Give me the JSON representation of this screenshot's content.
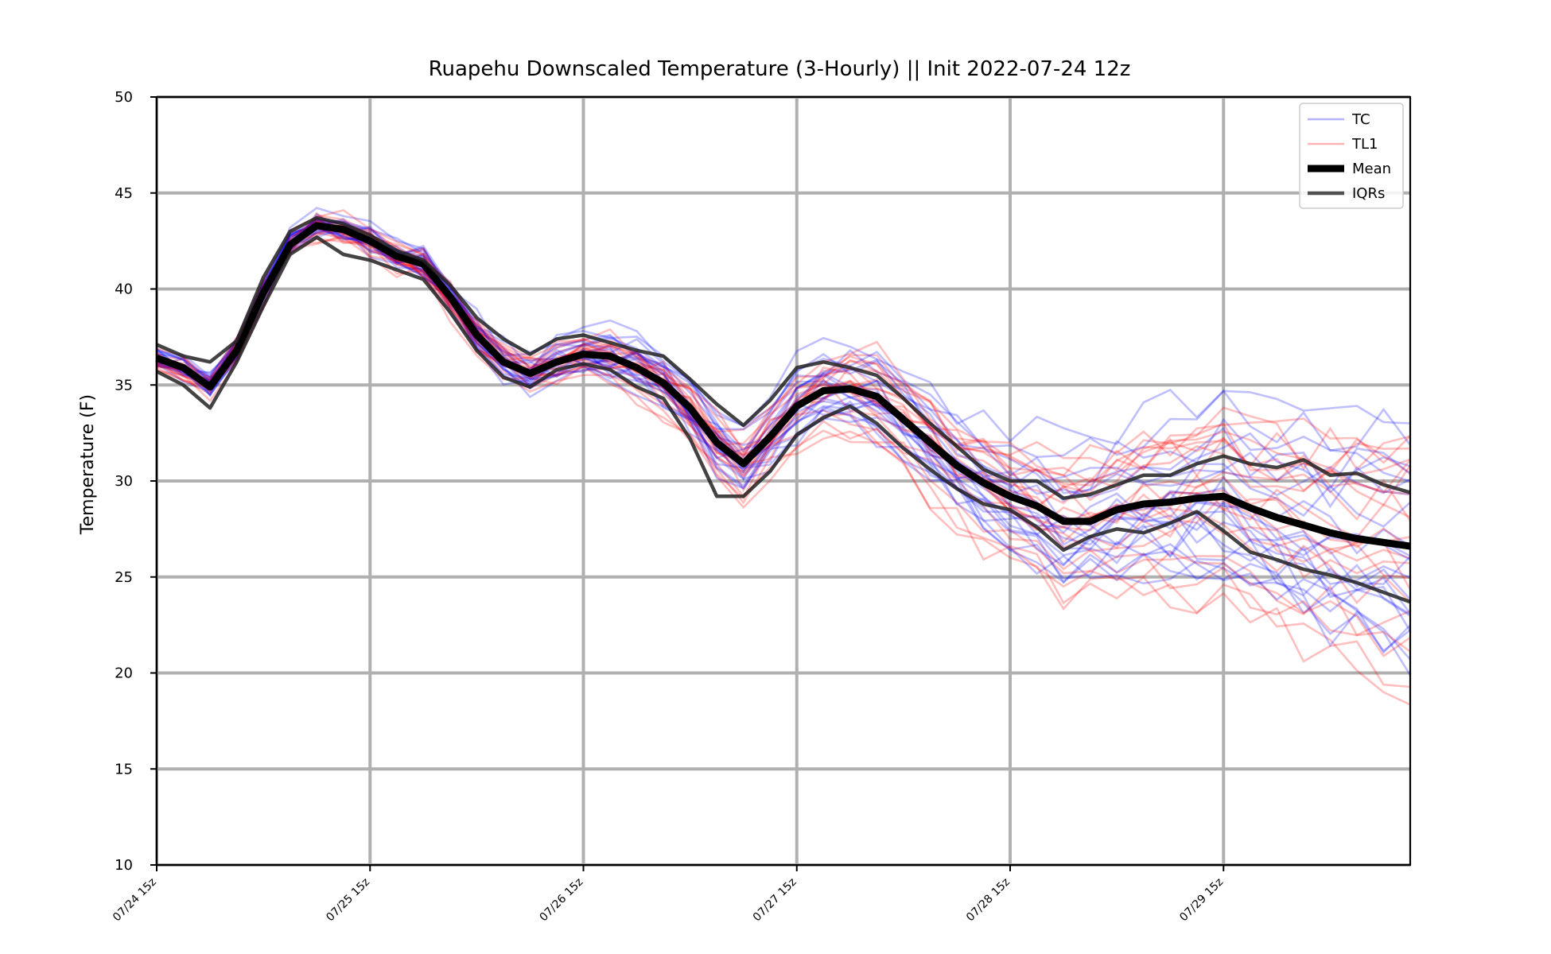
{
  "chart_data": {
    "type": "line",
    "title": "Ruapehu Downscaled Temperature (3-Hourly) || Init 2022-07-24 12z",
    "xlabel": "",
    "ylabel": "Temperature (F)",
    "ylim": [
      10,
      50
    ],
    "yticks": [
      10,
      15,
      20,
      25,
      30,
      35,
      40,
      45,
      50
    ],
    "x_tick_labels": [
      "07/24 15z",
      "07/25 15z",
      "07/26 15z",
      "07/27 15z",
      "07/28 15z",
      "07/29 15z"
    ],
    "x_hours": [
      0,
      3,
      6,
      9,
      12,
      15,
      18,
      21,
      24,
      27,
      30,
      33,
      36,
      39,
      42,
      45,
      48,
      51,
      54,
      57,
      60,
      63,
      66,
      69,
      72,
      75,
      78,
      81,
      84,
      87,
      90,
      93,
      96,
      99,
      102,
      105,
      108,
      111,
      114,
      117,
      120,
      123,
      126,
      129,
      132,
      135,
      138,
      141
    ],
    "grid": true,
    "legend": {
      "placement": "top-right",
      "entries": [
        {
          "label": "TC",
          "color": "#0000ff"
        },
        {
          "label": "TL1",
          "color": "#ff0000"
        },
        {
          "label": "Mean",
          "color": "#000000"
        },
        {
          "label": "IQRs",
          "color": "#333333"
        }
      ]
    },
    "series": [
      {
        "name": "Mean",
        "values": [
          36.4,
          35.9,
          34.9,
          36.8,
          39.8,
          42.3,
          43.3,
          43.1,
          42.5,
          41.7,
          41.3,
          39.6,
          37.6,
          36.2,
          35.6,
          36.2,
          36.6,
          36.5,
          35.9,
          35.1,
          33.8,
          32.0,
          30.9,
          32.3,
          33.9,
          34.7,
          34.8,
          34.4,
          33.2,
          32.0,
          30.8,
          29.9,
          29.2,
          28.7,
          27.9,
          27.9,
          28.5,
          28.8,
          28.9,
          29.1,
          29.2,
          28.6,
          28.1,
          27.7,
          27.3,
          27.0,
          26.8,
          26.6
        ]
      },
      {
        "name": "IQR upper",
        "values": [
          37.1,
          36.5,
          36.2,
          37.3,
          40.6,
          43.0,
          43.7,
          43.4,
          42.8,
          42.0,
          41.5,
          40.2,
          38.5,
          37.4,
          36.6,
          37.4,
          37.6,
          37.2,
          36.8,
          36.5,
          35.3,
          34.0,
          32.9,
          34.2,
          35.9,
          36.2,
          35.9,
          35.5,
          34.3,
          33.0,
          31.8,
          30.6,
          30.0,
          30.0,
          29.1,
          29.3,
          29.8,
          30.3,
          30.3,
          30.9,
          31.3,
          30.9,
          30.7,
          31.1,
          30.3,
          30.4,
          29.8,
          29.4
        ]
      },
      {
        "name": "IQR lower",
        "values": [
          35.7,
          35.0,
          33.8,
          36.2,
          39.1,
          41.8,
          42.7,
          41.8,
          41.5,
          41.0,
          40.5,
          38.8,
          36.8,
          35.4,
          34.9,
          35.8,
          36.1,
          35.8,
          34.9,
          34.3,
          32.2,
          29.2,
          29.2,
          30.5,
          32.4,
          33.3,
          33.9,
          33.0,
          31.7,
          30.6,
          29.6,
          28.8,
          28.5,
          27.6,
          26.4,
          27.1,
          27.5,
          27.3,
          27.8,
          28.4,
          27.4,
          26.3,
          25.9,
          25.4,
          25.1,
          24.7,
          24.2,
          23.7
        ]
      }
    ]
  }
}
